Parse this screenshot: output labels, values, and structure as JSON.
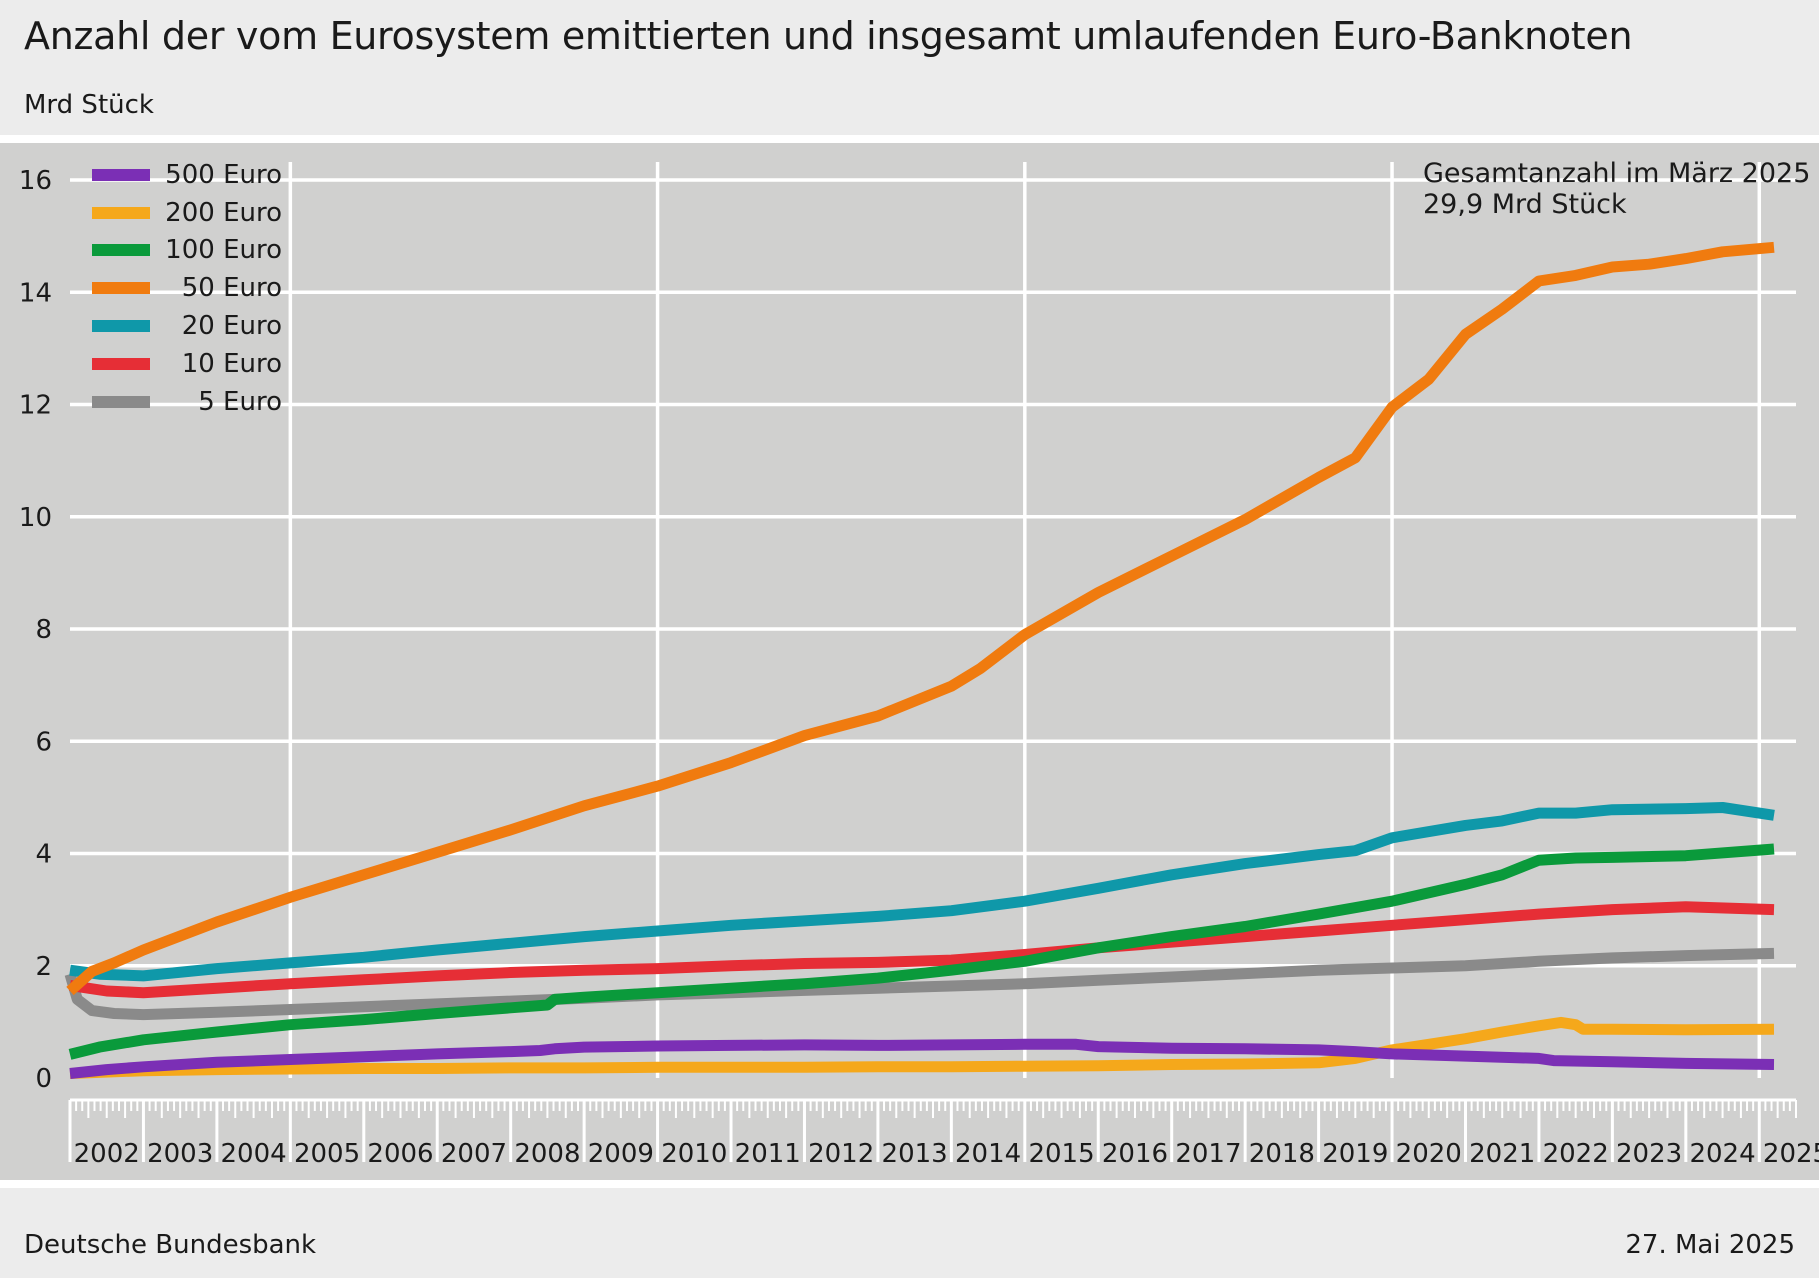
{
  "header": {
    "title": "Anzahl der vom Eurosystem emittierten und insgesamt umlaufenden Euro-Banknoten",
    "subtitle": "Mrd Stück"
  },
  "annotation": {
    "line1": "Gesamtanzahl im  März 2025",
    "line2": "29,9 Mrd Stück"
  },
  "footer": {
    "source": "Deutsche Bundesbank",
    "date": "27. Mai 2025"
  },
  "chart_data": {
    "type": "line",
    "x_unit": "year",
    "ylim": [
      0,
      16
    ],
    "yticks": [
      0,
      2,
      4,
      6,
      8,
      10,
      12,
      14,
      16
    ],
    "xlim": [
      2002.0,
      2025.5
    ],
    "year_labels": [
      "2002",
      "2003",
      "2004",
      "2005",
      "2006",
      "2007",
      "2008",
      "2009",
      "2010",
      "2011",
      "2012",
      "2013",
      "2014",
      "2015",
      "2016",
      "2017",
      "2018",
      "2019",
      "2020",
      "2021",
      "2022",
      "2023",
      "2024",
      "2025"
    ],
    "grid": true,
    "legend_position": "top-left",
    "series": [
      {
        "name": "500 Euro",
        "color": "#7b2fb5",
        "points": [
          [
            2002.0,
            0.08
          ],
          [
            2002.5,
            0.15
          ],
          [
            2003.0,
            0.2
          ],
          [
            2004.0,
            0.28
          ],
          [
            2005.0,
            0.33
          ],
          [
            2006.0,
            0.38
          ],
          [
            2007.0,
            0.43
          ],
          [
            2008.0,
            0.47
          ],
          [
            2008.4,
            0.49
          ],
          [
            2008.6,
            0.52
          ],
          [
            2009.0,
            0.55
          ],
          [
            2010.0,
            0.57
          ],
          [
            2011.0,
            0.58
          ],
          [
            2012.0,
            0.59
          ],
          [
            2013.0,
            0.58
          ],
          [
            2014.0,
            0.59
          ],
          [
            2015.0,
            0.6
          ],
          [
            2015.7,
            0.6
          ],
          [
            2016.0,
            0.56
          ],
          [
            2017.0,
            0.53
          ],
          [
            2018.0,
            0.52
          ],
          [
            2019.0,
            0.5
          ],
          [
            2019.5,
            0.47
          ],
          [
            2020.0,
            0.43
          ],
          [
            2021.0,
            0.39
          ],
          [
            2022.0,
            0.35
          ],
          [
            2022.2,
            0.31
          ],
          [
            2023.0,
            0.29
          ],
          [
            2024.0,
            0.26
          ],
          [
            2025.2,
            0.24
          ]
        ]
      },
      {
        "name": "200 Euro",
        "color": "#f5a81b",
        "points": [
          [
            2002.0,
            0.08
          ],
          [
            2003.0,
            0.13
          ],
          [
            2004.0,
            0.15
          ],
          [
            2005.0,
            0.16
          ],
          [
            2006.0,
            0.17
          ],
          [
            2007.0,
            0.17
          ],
          [
            2008.0,
            0.18
          ],
          [
            2009.0,
            0.18
          ],
          [
            2010.0,
            0.19
          ],
          [
            2011.0,
            0.19
          ],
          [
            2012.0,
            0.19
          ],
          [
            2013.0,
            0.2
          ],
          [
            2014.0,
            0.2
          ],
          [
            2015.0,
            0.21
          ],
          [
            2016.0,
            0.22
          ],
          [
            2017.0,
            0.24
          ],
          [
            2018.0,
            0.25
          ],
          [
            2019.0,
            0.27
          ],
          [
            2019.5,
            0.35
          ],
          [
            2020.0,
            0.5
          ],
          [
            2020.5,
            0.6
          ],
          [
            2021.0,
            0.7
          ],
          [
            2021.5,
            0.82
          ],
          [
            2022.0,
            0.93
          ],
          [
            2022.3,
            0.99
          ],
          [
            2022.5,
            0.95
          ],
          [
            2022.6,
            0.87
          ],
          [
            2023.0,
            0.87
          ],
          [
            2024.0,
            0.86
          ],
          [
            2025.2,
            0.87
          ]
        ]
      },
      {
        "name": "100 Euro",
        "color": "#0a9a3b",
        "points": [
          [
            2002.0,
            0.42
          ],
          [
            2002.4,
            0.55
          ],
          [
            2003.0,
            0.68
          ],
          [
            2004.0,
            0.82
          ],
          [
            2005.0,
            0.95
          ],
          [
            2006.0,
            1.04
          ],
          [
            2007.0,
            1.15
          ],
          [
            2008.0,
            1.25
          ],
          [
            2008.5,
            1.3
          ],
          [
            2008.6,
            1.4
          ],
          [
            2009.0,
            1.44
          ],
          [
            2010.0,
            1.52
          ],
          [
            2011.0,
            1.6
          ],
          [
            2012.0,
            1.68
          ],
          [
            2013.0,
            1.78
          ],
          [
            2014.0,
            1.92
          ],
          [
            2015.0,
            2.08
          ],
          [
            2016.0,
            2.32
          ],
          [
            2017.0,
            2.52
          ],
          [
            2018.0,
            2.7
          ],
          [
            2019.0,
            2.92
          ],
          [
            2020.0,
            3.15
          ],
          [
            2021.0,
            3.45
          ],
          [
            2021.5,
            3.62
          ],
          [
            2022.0,
            3.88
          ],
          [
            2022.5,
            3.92
          ],
          [
            2023.0,
            3.93
          ],
          [
            2024.0,
            3.96
          ],
          [
            2025.2,
            4.08
          ]
        ]
      },
      {
        "name": "50 Euro",
        "color": "#f07b0f",
        "points": [
          [
            2002.0,
            1.55
          ],
          [
            2002.3,
            1.9
          ],
          [
            2002.6,
            2.05
          ],
          [
            2003.0,
            2.28
          ],
          [
            2004.0,
            2.78
          ],
          [
            2005.0,
            3.22
          ],
          [
            2006.0,
            3.62
          ],
          [
            2007.0,
            4.02
          ],
          [
            2008.0,
            4.42
          ],
          [
            2009.0,
            4.85
          ],
          [
            2010.0,
            5.2
          ],
          [
            2011.0,
            5.62
          ],
          [
            2012.0,
            6.1
          ],
          [
            2013.0,
            6.45
          ],
          [
            2014.0,
            6.98
          ],
          [
            2014.4,
            7.3
          ],
          [
            2015.0,
            7.9
          ],
          [
            2016.0,
            8.65
          ],
          [
            2017.0,
            9.3
          ],
          [
            2018.0,
            9.95
          ],
          [
            2019.0,
            10.7
          ],
          [
            2019.5,
            11.05
          ],
          [
            2020.0,
            11.95
          ],
          [
            2020.5,
            12.45
          ],
          [
            2021.0,
            13.25
          ],
          [
            2021.5,
            13.7
          ],
          [
            2022.0,
            14.2
          ],
          [
            2022.5,
            14.3
          ],
          [
            2023.0,
            14.45
          ],
          [
            2023.5,
            14.5
          ],
          [
            2024.0,
            14.6
          ],
          [
            2024.5,
            14.72
          ],
          [
            2025.2,
            14.8
          ]
        ]
      },
      {
        "name": "20 Euro",
        "color": "#0f98a9",
        "points": [
          [
            2002.0,
            1.92
          ],
          [
            2002.4,
            1.85
          ],
          [
            2003.0,
            1.82
          ],
          [
            2004.0,
            1.95
          ],
          [
            2005.0,
            2.05
          ],
          [
            2006.0,
            2.15
          ],
          [
            2007.0,
            2.28
          ],
          [
            2008.0,
            2.4
          ],
          [
            2009.0,
            2.52
          ],
          [
            2010.0,
            2.62
          ],
          [
            2011.0,
            2.72
          ],
          [
            2012.0,
            2.8
          ],
          [
            2013.0,
            2.88
          ],
          [
            2014.0,
            2.98
          ],
          [
            2015.0,
            3.15
          ],
          [
            2016.0,
            3.38
          ],
          [
            2017.0,
            3.62
          ],
          [
            2018.0,
            3.82
          ],
          [
            2019.0,
            3.98
          ],
          [
            2019.5,
            4.05
          ],
          [
            2020.0,
            4.28
          ],
          [
            2021.0,
            4.5
          ],
          [
            2021.5,
            4.58
          ],
          [
            2022.0,
            4.72
          ],
          [
            2022.5,
            4.72
          ],
          [
            2023.0,
            4.78
          ],
          [
            2024.0,
            4.8
          ],
          [
            2024.5,
            4.82
          ],
          [
            2025.2,
            4.68
          ]
        ]
      },
      {
        "name": "10 Euro",
        "color": "#e62e36",
        "points": [
          [
            2002.0,
            1.65
          ],
          [
            2002.5,
            1.55
          ],
          [
            2003.0,
            1.52
          ],
          [
            2004.0,
            1.6
          ],
          [
            2005.0,
            1.68
          ],
          [
            2006.0,
            1.75
          ],
          [
            2007.0,
            1.82
          ],
          [
            2008.0,
            1.88
          ],
          [
            2009.0,
            1.92
          ],
          [
            2010.0,
            1.95
          ],
          [
            2011.0,
            2.0
          ],
          [
            2012.0,
            2.04
          ],
          [
            2013.0,
            2.06
          ],
          [
            2014.0,
            2.1
          ],
          [
            2015.0,
            2.2
          ],
          [
            2016.0,
            2.32
          ],
          [
            2017.0,
            2.42
          ],
          [
            2018.0,
            2.52
          ],
          [
            2019.0,
            2.62
          ],
          [
            2020.0,
            2.72
          ],
          [
            2021.0,
            2.82
          ],
          [
            2022.0,
            2.92
          ],
          [
            2023.0,
            3.0
          ],
          [
            2024.0,
            3.05
          ],
          [
            2025.2,
            3.0
          ]
        ]
      },
      {
        "name": "5 Euro",
        "color": "#8a8a8a",
        "points": [
          [
            2002.0,
            1.85
          ],
          [
            2002.1,
            1.4
          ],
          [
            2002.3,
            1.2
          ],
          [
            2002.6,
            1.15
          ],
          [
            2003.0,
            1.13
          ],
          [
            2004.0,
            1.17
          ],
          [
            2005.0,
            1.22
          ],
          [
            2006.0,
            1.27
          ],
          [
            2007.0,
            1.32
          ],
          [
            2008.0,
            1.37
          ],
          [
            2009.0,
            1.42
          ],
          [
            2010.0,
            1.48
          ],
          [
            2011.0,
            1.52
          ],
          [
            2012.0,
            1.56
          ],
          [
            2013.0,
            1.6
          ],
          [
            2014.0,
            1.64
          ],
          [
            2015.0,
            1.68
          ],
          [
            2016.0,
            1.74
          ],
          [
            2017.0,
            1.8
          ],
          [
            2018.0,
            1.86
          ],
          [
            2019.0,
            1.92
          ],
          [
            2020.0,
            1.96
          ],
          [
            2021.0,
            2.0
          ],
          [
            2022.0,
            2.08
          ],
          [
            2023.0,
            2.14
          ],
          [
            2024.0,
            2.18
          ],
          [
            2025.2,
            2.22
          ]
        ]
      }
    ]
  }
}
